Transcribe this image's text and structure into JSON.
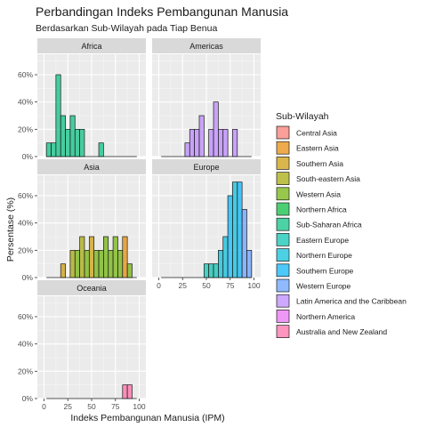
{
  "chart_data": {
    "type": "bar",
    "title": "Perbandingan Indeks Pembangunan Manusia",
    "subtitle": "Berdasarkan Sub-Wilayah pada Tiap Benua",
    "xlabel": "Indeks Pembangunan Manusia (IPM)",
    "ylabel": "Persentase (%)",
    "xlim": [
      0,
      100
    ],
    "ylim": [
      0,
      75
    ],
    "x_ticks": [
      0,
      25,
      50,
      75,
      100
    ],
    "y_ticks": [
      0,
      20,
      40,
      60
    ],
    "y_tick_labels": [
      "0%",
      "20%",
      "40%",
      "60%"
    ],
    "bin_width": 5,
    "grid": true,
    "legend_title": "Sub-Wilayah",
    "legend_position": "right",
    "subregions": [
      {
        "name": "Central Asia",
        "color": "#F8766D"
      },
      {
        "name": "Eastern Asia",
        "color": "#E58700"
      },
      {
        "name": "Southern Asia",
        "color": "#C99800"
      },
      {
        "name": "South-eastern Asia",
        "color": "#A3A500"
      },
      {
        "name": "Western Asia",
        "color": "#6BB100"
      },
      {
        "name": "Northern Africa",
        "color": "#00BA38"
      },
      {
        "name": "Sub-Saharan Africa",
        "color": "#00BF7D"
      },
      {
        "name": "Eastern Europe",
        "color": "#00C0AF"
      },
      {
        "name": "Northern Europe",
        "color": "#00BCD8"
      },
      {
        "name": "Southern Europe",
        "color": "#00B0F6"
      },
      {
        "name": "Western Europe",
        "color": "#619CFF"
      },
      {
        "name": "Latin America and the Caribbean",
        "color": "#B983FF"
      },
      {
        "name": "Northern America",
        "color": "#E76BF3"
      },
      {
        "name": "Australia and New Zealand",
        "color": "#FF67A4"
      }
    ],
    "facets": [
      {
        "name": "Africa",
        "bars": [
          {
            "x": 5,
            "y": 10,
            "group": "Sub-Saharan Africa"
          },
          {
            "x": 10,
            "y": 10,
            "group": "Sub-Saharan Africa"
          },
          {
            "x": 15,
            "y": 60,
            "group": "Sub-Saharan Africa"
          },
          {
            "x": 20,
            "y": 30,
            "group": "Sub-Saharan Africa"
          },
          {
            "x": 25,
            "y": 20,
            "group": "Sub-Saharan Africa"
          },
          {
            "x": 30,
            "y": 30,
            "group": "Sub-Saharan Africa"
          },
          {
            "x": 35,
            "y": 20,
            "group": "Sub-Saharan Africa"
          },
          {
            "x": 40,
            "y": 20,
            "group": "Sub-Saharan Africa"
          },
          {
            "x": 60,
            "y": 10,
            "group": "Sub-Saharan Africa"
          }
        ]
      },
      {
        "name": "Americas",
        "bars": [
          {
            "x": 30,
            "y": 10,
            "group": "Latin America and the Caribbean"
          },
          {
            "x": 35,
            "y": 20,
            "group": "Latin America and the Caribbean"
          },
          {
            "x": 40,
            "y": 20,
            "group": "Latin America and the Caribbean"
          },
          {
            "x": 45,
            "y": 30,
            "group": "Latin America and the Caribbean"
          },
          {
            "x": 55,
            "y": 20,
            "group": "Latin America and the Caribbean"
          },
          {
            "x": 60,
            "y": 40,
            "group": "Latin America and the Caribbean"
          },
          {
            "x": 65,
            "y": 20,
            "group": "Latin America and the Caribbean"
          },
          {
            "x": 70,
            "y": 20,
            "group": "Latin America and the Caribbean"
          },
          {
            "x": 80,
            "y": 20,
            "group": "Latin America and the Caribbean"
          }
        ]
      },
      {
        "name": "Asia",
        "bars": [
          {
            "x": 20,
            "y": 10,
            "group": "Southern Asia"
          },
          {
            "x": 30,
            "y": 20,
            "group": "South-eastern Asia"
          },
          {
            "x": 35,
            "y": 20,
            "group": "Western Asia"
          },
          {
            "x": 40,
            "y": 30,
            "group": "South-eastern Asia"
          },
          {
            "x": 45,
            "y": 20,
            "group": "Western Asia"
          },
          {
            "x": 50,
            "y": 30,
            "group": "Southern Asia"
          },
          {
            "x": 55,
            "y": 20,
            "group": "Western Asia"
          },
          {
            "x": 60,
            "y": 20,
            "group": "Western Asia"
          },
          {
            "x": 65,
            "y": 30,
            "group": "Western Asia"
          },
          {
            "x": 70,
            "y": 20,
            "group": "Western Asia"
          },
          {
            "x": 75,
            "y": 30,
            "group": "Western Asia"
          },
          {
            "x": 80,
            "y": 20,
            "group": "Western Asia"
          },
          {
            "x": 85,
            "y": 30,
            "group": "Eastern Asia"
          },
          {
            "x": 90,
            "y": 10,
            "group": "Western Asia"
          }
        ]
      },
      {
        "name": "Europe",
        "bars": [
          {
            "x": 50,
            "y": 10,
            "group": "Eastern Europe"
          },
          {
            "x": 55,
            "y": 10,
            "group": "Eastern Europe"
          },
          {
            "x": 60,
            "y": 10,
            "group": "Eastern Europe"
          },
          {
            "x": 65,
            "y": 20,
            "group": "Northern Europe"
          },
          {
            "x": 70,
            "y": 30,
            "group": "Northern Europe"
          },
          {
            "x": 75,
            "y": 60,
            "group": "Southern Europe"
          },
          {
            "x": 80,
            "y": 70,
            "group": "Northern Europe"
          },
          {
            "x": 85,
            "y": 70,
            "group": "Southern Europe"
          },
          {
            "x": 90,
            "y": 50,
            "group": "Western Europe"
          },
          {
            "x": 95,
            "y": 20,
            "group": "Western Europe"
          }
        ]
      },
      {
        "name": "Oceania",
        "bars": [
          {
            "x": 85,
            "y": 10,
            "group": "Australia and New Zealand"
          },
          {
            "x": 90,
            "y": 10,
            "group": "Australia and New Zealand"
          }
        ]
      }
    ]
  }
}
